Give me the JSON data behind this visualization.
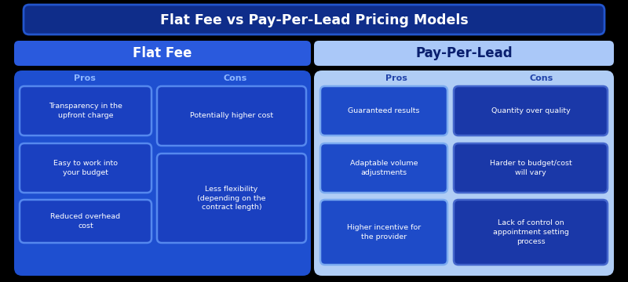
{
  "title": "Flat Fee vs Pay-Per-Lead Pricing Models",
  "flat_fee_label": "Flat Fee",
  "pay_per_lead_label": "Pay-Per-Lead",
  "flat_fee_pros_label": "Pros",
  "flat_fee_cons_label": "Cons",
  "pay_per_lead_pros_label": "Pros",
  "pay_per_lead_cons_label": "Cons",
  "flat_fee_pros": [
    "Transparency in the\nupfront charge",
    "Easy to work into\nyour budget",
    "Reduced overhead\ncost"
  ],
  "flat_fee_cons": [
    "Potentially higher cost",
    "Less flexibility\n(depending on the\ncontract length)"
  ],
  "pay_per_lead_pros": [
    "Guaranteed results",
    "Adaptable volume\nadjustments",
    "Higher incentive for\nthe provider"
  ],
  "pay_per_lead_cons": [
    "Quantity over quality",
    "Harder to budget/cost\nwill vary",
    "Lack of control on\nappointment setting\nprocess"
  ],
  "bg_color": "#000000",
  "title_bar_color": "#0f2d8a",
  "title_bar_border": "#2255cc",
  "title_text_color": "#ffffff",
  "ff_header_color": "#2a5add",
  "ff_header_text": "#ffffff",
  "ppl_header_color": "#aac8f8",
  "ppl_header_text": "#0a1f6e",
  "ff_panel_color": "#1e4fd0",
  "ppl_panel_color": "#b0cdf5",
  "ff_pros_box": "#1a40c0",
  "ff_pros_border": "#5588ee",
  "ff_cons_box": "#1a40c0",
  "ff_cons_border": "#5588ee",
  "ppl_pros_box": "#1e4bc8",
  "ppl_pros_border": "#7aaaf0",
  "ppl_cons_box": "#1a38a8",
  "ppl_cons_border": "#4466cc",
  "ff_pros_label_color": "#90b8ff",
  "ff_cons_label_color": "#90b8ff",
  "ppl_pros_label_color": "#2244aa",
  "ppl_cons_label_color": "#2244aa",
  "card_text_color": "#ffffff",
  "ppl_card_text_color": "#ffffff"
}
